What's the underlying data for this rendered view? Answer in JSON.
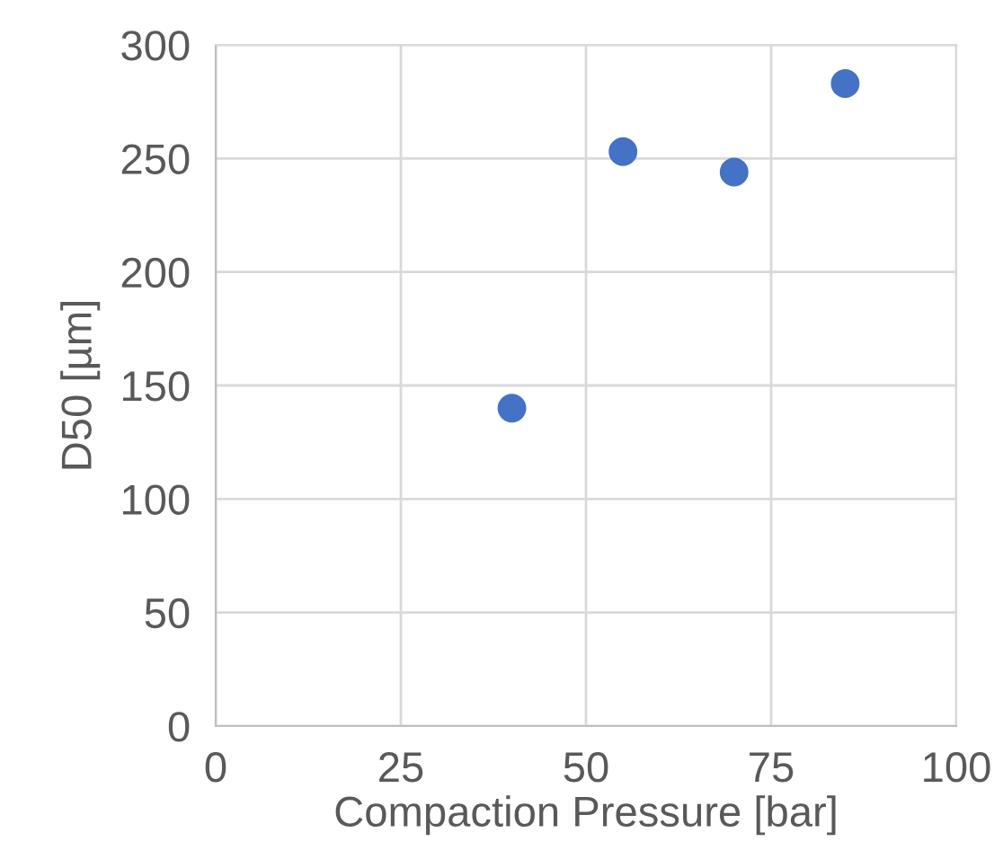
{
  "chart_data": {
    "type": "scatter",
    "xlabel": "Compaction Pressure [bar]",
    "ylabel": "D50 [µm]",
    "x": [
      40,
      55,
      70,
      85
    ],
    "series": [
      {
        "color": "#4472c4",
        "values": [
          140,
          253,
          244,
          283
        ]
      }
    ],
    "xlim": [
      0,
      100
    ],
    "xticks": [
      0,
      25,
      50,
      75,
      100
    ],
    "ylim": [
      0,
      300
    ],
    "yticks": [
      0,
      50,
      100,
      150,
      200,
      250,
      300
    ],
    "grid": true,
    "marker": "circle"
  }
}
